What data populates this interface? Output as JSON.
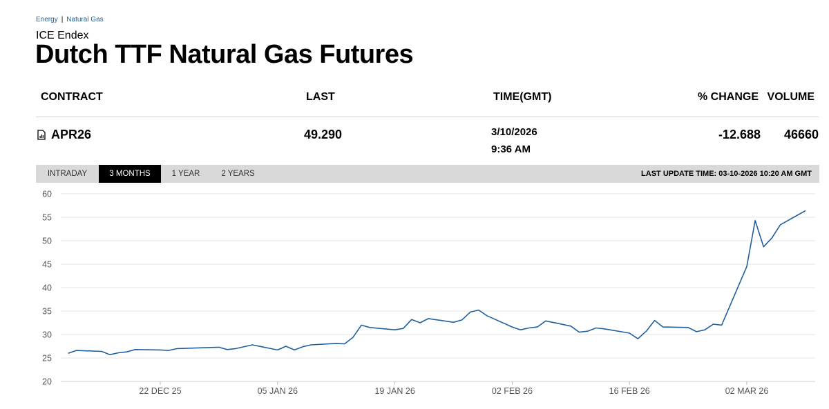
{
  "breadcrumb": {
    "items": [
      "Energy",
      "Natural Gas"
    ],
    "separator": "|"
  },
  "exchange": "ICE Endex",
  "title": "Dutch TTF Natural Gas Futures",
  "table": {
    "headers": {
      "contract": "CONTRACT",
      "last": "LAST",
      "time": "TIME(GMT)",
      "change": "% CHANGE",
      "volume": "VOLUME"
    },
    "row": {
      "contract": "APR26",
      "last": "49.290",
      "date": "3/10/2026",
      "time": "9:36 AM",
      "change": "-12.688",
      "volume": "46660"
    }
  },
  "toolbar": {
    "tabs": [
      "INTRADAY",
      "3 MONTHS",
      "1 YEAR",
      "2 YEARS"
    ],
    "active_tab": "3 MONTHS",
    "last_update": "LAST UPDATE TIME: 03-10-2026 10:20 AM GMT"
  },
  "colors": {
    "line": "#1f5f9e",
    "active_tab_bg": "#000000",
    "toolbar_bg": "#d9d9d9",
    "link": "#2a5d8c"
  },
  "icons": {
    "contract": "chart-document-icon"
  },
  "chart_data": {
    "type": "line",
    "title": "",
    "xlabel": "",
    "ylabel": "",
    "ylim": [
      20,
      60
    ],
    "yticks": [
      20,
      25,
      30,
      35,
      40,
      45,
      50,
      55,
      60
    ],
    "xticks": [
      "22 DEC 25",
      "05 JAN 26",
      "19 JAN 26",
      "02 FEB 26",
      "16 FEB 26",
      "02 MAR 26"
    ],
    "xtick_dates": [
      "2025-12-22",
      "2026-01-05",
      "2026-01-19",
      "2026-02-02",
      "2026-02-16",
      "2026-03-02"
    ],
    "grid": true,
    "legend": "none",
    "series": [
      {
        "x": [
          "2025-12-11",
          "2025-12-12",
          "2025-12-15",
          "2025-12-16",
          "2025-12-17",
          "2025-12-18",
          "2025-12-19",
          "2025-12-22",
          "2025-12-23",
          "2025-12-24",
          "2025-12-29",
          "2025-12-30",
          "2025-12-31",
          "2026-01-02",
          "2026-01-05",
          "2026-01-06",
          "2026-01-07",
          "2026-01-08",
          "2026-01-09",
          "2026-01-12",
          "2026-01-13",
          "2026-01-14",
          "2026-01-15",
          "2026-01-16",
          "2026-01-19",
          "2026-01-20",
          "2026-01-21",
          "2026-01-22",
          "2026-01-23",
          "2026-01-26",
          "2026-01-27",
          "2026-01-28",
          "2026-01-29",
          "2026-01-30",
          "2026-02-02",
          "2026-02-03",
          "2026-02-04",
          "2026-02-05",
          "2026-02-06",
          "2026-02-09",
          "2026-02-10",
          "2026-02-11",
          "2026-02-12",
          "2026-02-13",
          "2026-02-16",
          "2026-02-17",
          "2026-02-18",
          "2026-02-19",
          "2026-02-20",
          "2026-02-23",
          "2026-02-24",
          "2026-02-25",
          "2026-02-26",
          "2026-02-27",
          "2026-03-02",
          "2026-03-03",
          "2026-03-04",
          "2026-03-05",
          "2026-03-06",
          "2026-03-09"
        ],
        "values": [
          26.0,
          26.6,
          26.4,
          25.7,
          26.1,
          26.3,
          26.8,
          26.7,
          26.6,
          27.0,
          27.3,
          26.8,
          27.0,
          27.8,
          26.7,
          27.5,
          26.7,
          27.4,
          27.8,
          28.1,
          28.0,
          29.4,
          32.0,
          31.5,
          31.0,
          31.3,
          33.2,
          32.5,
          33.4,
          32.6,
          33.1,
          34.8,
          35.2,
          34.0,
          31.6,
          31.0,
          31.4,
          31.6,
          32.9,
          31.8,
          30.5,
          30.7,
          31.4,
          31.2,
          30.3,
          29.1,
          30.7,
          33.0,
          31.6,
          31.5,
          30.6,
          31.0,
          32.2,
          32.0,
          44.5,
          54.3,
          48.7,
          50.6,
          53.4,
          56.4
        ]
      }
    ]
  }
}
